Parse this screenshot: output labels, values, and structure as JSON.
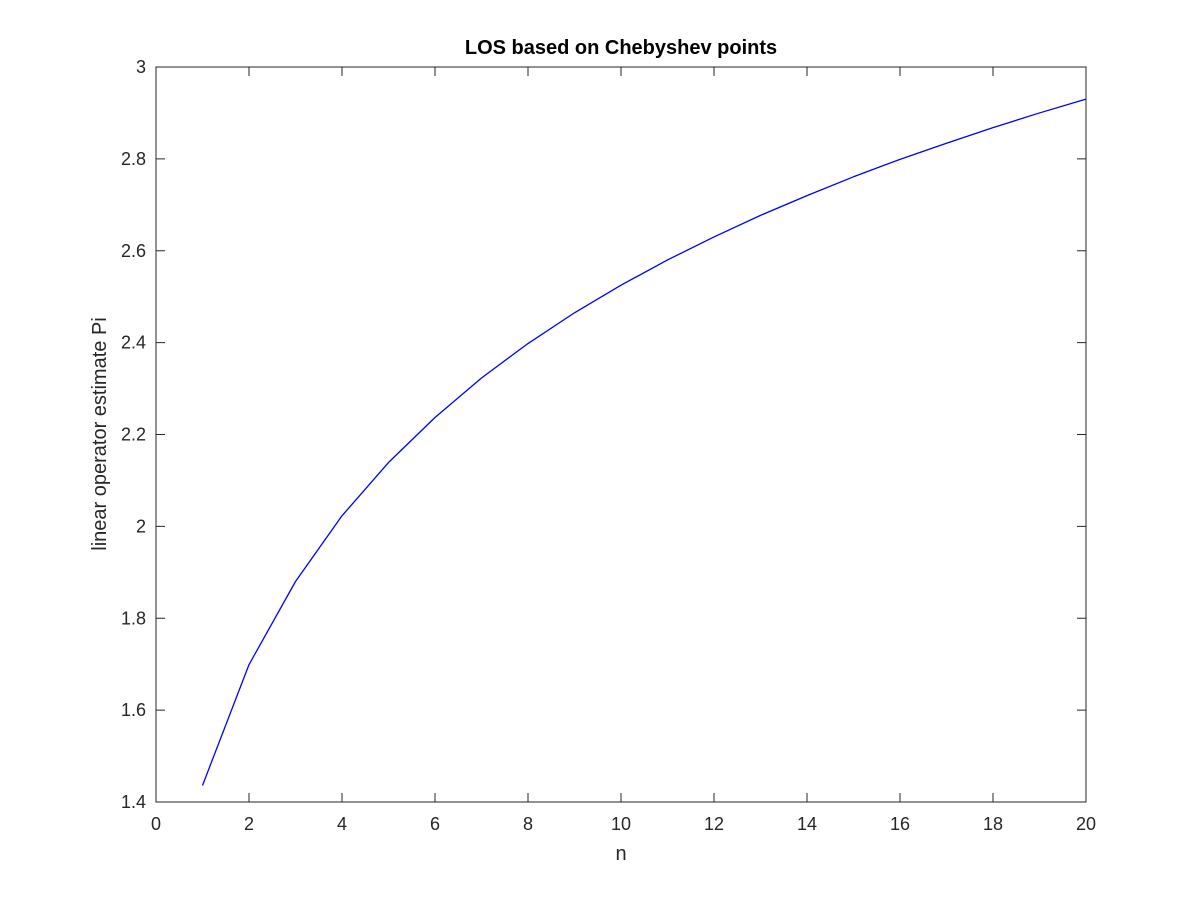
{
  "chart_data": {
    "type": "line",
    "title": "LOS based on Chebyshev points",
    "xlabel": "n",
    "ylabel": "linear operator estimate Pi",
    "xlim": [
      0,
      20
    ],
    "ylim": [
      1.4,
      3
    ],
    "xticks": [
      0,
      2,
      4,
      6,
      8,
      10,
      12,
      14,
      16,
      18,
      20
    ],
    "yticks": [
      1.4,
      1.6,
      1.8,
      2,
      2.2,
      2.4,
      2.6,
      2.8,
      3
    ],
    "xtick_labels": [
      "0",
      "2",
      "4",
      "6",
      "8",
      "10",
      "12",
      "14",
      "16",
      "18",
      "20"
    ],
    "ytick_labels": [
      "1.4",
      "1.6",
      "1.8",
      "2",
      "2.2",
      "2.4",
      "2.6",
      "2.8",
      "3"
    ],
    "grid": false,
    "box": true,
    "series": [
      {
        "color": "#0000ff",
        "x": [
          1,
          2,
          3,
          4,
          5,
          6,
          7,
          8,
          9,
          10,
          11,
          12,
          13,
          14,
          15,
          16,
          17,
          18,
          19,
          20
        ],
        "y": [
          1.436,
          1.699,
          1.88,
          2.023,
          2.139,
          2.237,
          2.323,
          2.398,
          2.465,
          2.525,
          2.58,
          2.63,
          2.677,
          2.72,
          2.761,
          2.799,
          2.834,
          2.868,
          2.9,
          2.93
        ]
      }
    ]
  }
}
